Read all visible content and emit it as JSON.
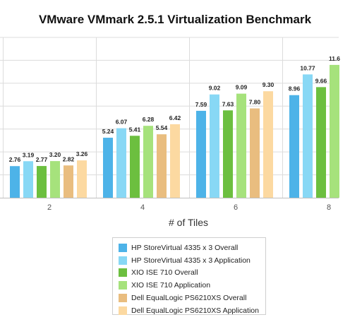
{
  "chart_data": {
    "type": "bar",
    "title": "VMware VMmark 2.5.1 Virtualization Benchmark",
    "xlabel": "# of Tiles",
    "ylabel": "",
    "categories": [
      "2",
      "4",
      "6",
      "8"
    ],
    "ylim": [
      0,
      14
    ],
    "grid": true,
    "legend_position": "bottom",
    "series": [
      {
        "name": "HP StoreVirtual 4335 x 3 Overall",
        "color": "#4db3e8",
        "values": [
          2.76,
          5.24,
          7.59,
          8.96
        ]
      },
      {
        "name": "HP StoreVirtual 4335 x 3 Application",
        "color": "#88d8f5",
        "values": [
          3.19,
          6.07,
          9.02,
          10.77
        ]
      },
      {
        "name": "XIO ISE 710 Overall",
        "color": "#6cbf3f",
        "values": [
          2.77,
          5.41,
          7.63,
          9.66
        ]
      },
      {
        "name": "XIO ISE 710 Application",
        "color": "#a6e27c",
        "values": [
          3.2,
          6.28,
          9.09,
          11.6
        ]
      },
      {
        "name": "Dell EqualLogic PS6210XS Overall",
        "color": "#e9bd7f",
        "values": [
          2.82,
          5.54,
          7.8,
          null
        ]
      },
      {
        "name": "Dell EqualLogic PS6210XS Application",
        "color": "#fcd9a1",
        "values": [
          3.26,
          6.42,
          9.3,
          null
        ]
      }
    ],
    "data_labels": [
      [
        "2.76",
        "3.19",
        "2.77",
        "3.20",
        "2.82",
        "3.26"
      ],
      [
        "5.24",
        "6.07",
        "5.41",
        "6.28",
        "5.54",
        "6.42"
      ],
      [
        "7.59",
        "9.02",
        "7.63",
        "9.09",
        "7.80",
        "9.30"
      ],
      [
        "8.96",
        "10.77",
        "9.66",
        "11.6",
        "",
        ""
      ]
    ]
  }
}
